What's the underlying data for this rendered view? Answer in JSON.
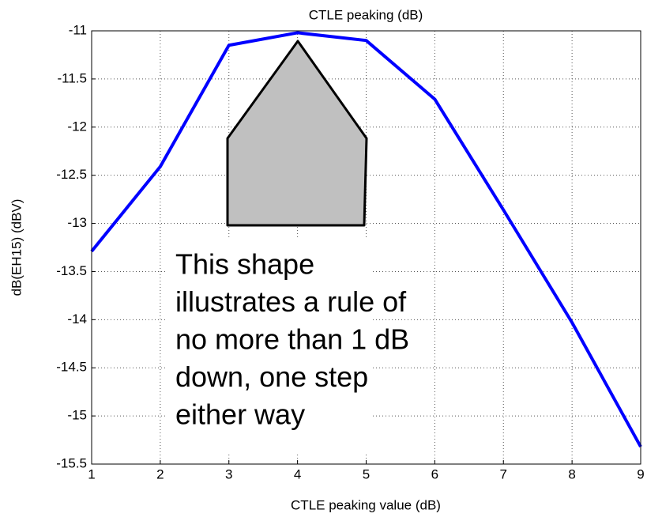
{
  "chart_data": {
    "type": "line",
    "title": "CTLE peaking (dB)",
    "x_label": "CTLE peaking value (dB)",
    "y_label": "dB(EH15) (dBV)",
    "x": [
      1,
      2,
      3,
      4,
      5,
      6,
      7,
      8,
      9
    ],
    "series": [
      {
        "name": "dB(EH15)",
        "color": "#0000ff",
        "values": [
          -13.29,
          -12.41,
          -11.15,
          -11.02,
          -11.1,
          -11.71,
          -12.86,
          -14.03,
          -15.32
        ]
      }
    ],
    "xlim": [
      1,
      9
    ],
    "xticks": [
      1,
      2,
      3,
      4,
      5,
      6,
      7,
      8,
      9
    ],
    "ylim": [
      -15.5,
      -11
    ],
    "yticks": [
      -15.5,
      -15,
      -14.5,
      -14,
      -13.5,
      -13,
      -12.5,
      -12,
      -11.5,
      -11
    ],
    "grid": true,
    "annotation_lines": [
      "This shape",
      "illustrates a rule of",
      "no more than 1 dB",
      "down, one step",
      "either way"
    ]
  }
}
